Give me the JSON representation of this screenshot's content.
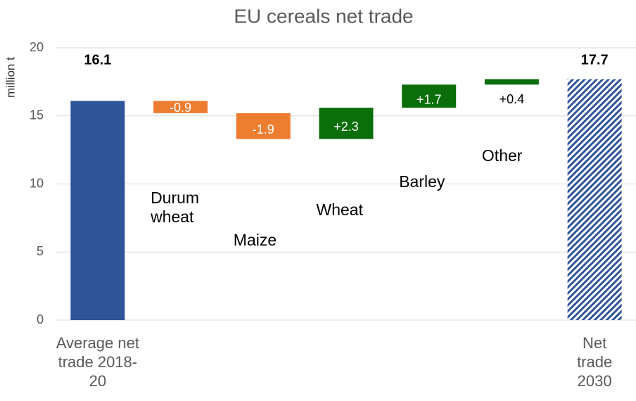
{
  "chart_data": {
    "type": "waterfall",
    "title": "EU cereals net trade",
    "y_label": "million t",
    "categories": [
      "Average net trade 2018-20",
      "Durum wheat",
      "Maize",
      "Wheat",
      "Barley",
      "Other",
      "Net trade 2030"
    ],
    "values": [
      16.1,
      -0.9,
      -1.9,
      2.3,
      1.7,
      0.4,
      17.7
    ],
    "value_labels": [
      "16.1",
      "-0.9",
      "-1.9",
      "+2.3",
      "+1.7",
      "+0.4",
      "17.7"
    ],
    "total_color": "#2f5597",
    "increase_color": "#0b6e0b",
    "decrease_color": "#ed7d31",
    "ylim": [
      0,
      20
    ],
    "yticks": [
      0,
      5,
      10,
      15,
      20
    ],
    "grid": true
  }
}
